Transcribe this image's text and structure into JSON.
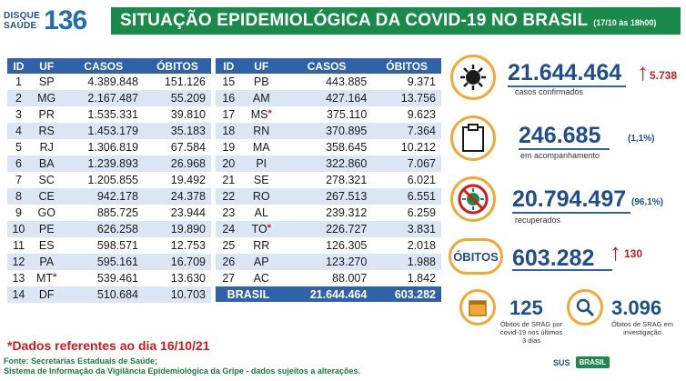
{
  "header": {
    "logo_line1": "DISQUE",
    "logo_line2": "SAÚDE",
    "logo_number": "136",
    "title": "SITUAÇÃO EPIDEMIOLÓGICA DA COVID-19 NO BRASIL",
    "date": "(17/10 às 18h00)"
  },
  "table": {
    "columns": [
      "ID",
      "UF",
      "CASOS",
      "ÓBITOS"
    ],
    "left_rows": [
      {
        "id": "1",
        "uf": "SP",
        "casos": "4.389.848",
        "obitos": "151.126",
        "star": ""
      },
      {
        "id": "2",
        "uf": "MG",
        "casos": "2.167.487",
        "obitos": "55.209",
        "star": ""
      },
      {
        "id": "3",
        "uf": "PR",
        "casos": "1.535.331",
        "obitos": "39.810",
        "star": ""
      },
      {
        "id": "4",
        "uf": "RS",
        "casos": "1.453.179",
        "obitos": "35.183",
        "star": ""
      },
      {
        "id": "5",
        "uf": "RJ",
        "casos": "1.306.819",
        "obitos": "67.584",
        "star": ""
      },
      {
        "id": "6",
        "uf": "BA",
        "casos": "1.239.893",
        "obitos": "26.968",
        "star": ""
      },
      {
        "id": "7",
        "uf": "SC",
        "casos": "1.205.855",
        "obitos": "19.492",
        "star": ""
      },
      {
        "id": "8",
        "uf": "CE",
        "casos": "942.178",
        "obitos": "24.378",
        "star": ""
      },
      {
        "id": "9",
        "uf": "GO",
        "casos": "885.725",
        "obitos": "23.944",
        "star": ""
      },
      {
        "id": "10",
        "uf": "PE",
        "casos": "626.258",
        "obitos": "19.890",
        "star": ""
      },
      {
        "id": "11",
        "uf": "ES",
        "casos": "598.571",
        "obitos": "12.753",
        "star": ""
      },
      {
        "id": "12",
        "uf": "PA",
        "casos": "595.161",
        "obitos": "16.709",
        "star": ""
      },
      {
        "id": "13",
        "uf": "MT",
        "casos": "539.461",
        "obitos": "13.630",
        "star": "*"
      },
      {
        "id": "14",
        "uf": "DF",
        "casos": "510.684",
        "obitos": "10.703",
        "star": ""
      }
    ],
    "right_rows": [
      {
        "id": "15",
        "uf": "PB",
        "casos": "443.885",
        "obitos": "9.371",
        "star": ""
      },
      {
        "id": "16",
        "uf": "AM",
        "casos": "427.164",
        "obitos": "13.756",
        "star": ""
      },
      {
        "id": "17",
        "uf": "MS",
        "casos": "375.110",
        "obitos": "9.623",
        "star": "*"
      },
      {
        "id": "18",
        "uf": "RN",
        "casos": "370.895",
        "obitos": "7.364",
        "star": ""
      },
      {
        "id": "19",
        "uf": "MA",
        "casos": "358.645",
        "obitos": "10.212",
        "star": ""
      },
      {
        "id": "20",
        "uf": "PI",
        "casos": "322.860",
        "obitos": "7.067",
        "star": ""
      },
      {
        "id": "21",
        "uf": "SE",
        "casos": "278.321",
        "obitos": "6.021",
        "star": ""
      },
      {
        "id": "22",
        "uf": "RO",
        "casos": "267.513",
        "obitos": "6.551",
        "star": ""
      },
      {
        "id": "23",
        "uf": "AL",
        "casos": "239.312",
        "obitos": "6.259",
        "star": ""
      },
      {
        "id": "24",
        "uf": "TO",
        "casos": "226.727",
        "obitos": "3.831",
        "star": "*"
      },
      {
        "id": "25",
        "uf": "RR",
        "casos": "126.305",
        "obitos": "2.018",
        "star": ""
      },
      {
        "id": "26",
        "uf": "AP",
        "casos": "123.270",
        "obitos": "1.988",
        "star": ""
      },
      {
        "id": "27",
        "uf": "AC",
        "casos": "88.007",
        "obitos": "1.842",
        "star": ""
      }
    ],
    "total": {
      "label": "BRASIL",
      "casos": "21.644.464",
      "obitos": "603.282"
    }
  },
  "stats": {
    "confirmed": {
      "value": "21.644.464",
      "delta": "5.738",
      "label": "casos confirmados",
      "icon": "virus-icon"
    },
    "monitoring": {
      "value": "246.685",
      "pct": "(1,1%)",
      "label": "em acompanhamento",
      "icon": "clipboard-icon"
    },
    "recovered": {
      "value": "20.794.497",
      "pct": "(96,1%)",
      "label": "recuperados",
      "icon": "no-virus-icon"
    },
    "deaths": {
      "badge": "ÓBITOS",
      "value": "603.282",
      "delta": "130"
    },
    "srag_deaths": {
      "value": "125",
      "label": "Óbitos de SRAG por covid-19 nos últimos 3 dias",
      "icon": "calendar-icon"
    },
    "srag_investigation": {
      "value": "3.096",
      "label": "Óbitos de SRAG em investigação",
      "icon": "magnifier-icon"
    }
  },
  "footer": {
    "note": "*Dados referentes ao dia 16/10/21",
    "source_line1": "Fonte: Secretarias Estaduais de Saúde;",
    "source_line2": "Sistema de Informação da Vigilância Epidemiológica da Gripe - dados sujeitos a alterações.",
    "logo_sus": "SUS",
    "logo_brasil": "BRASIL"
  },
  "colors": {
    "header_green": "#1a8a4a",
    "table_blue": "#2f62a8",
    "row_alt": "#dbe6f4",
    "accent_orange": "#f2a933",
    "alert_red": "#d11a1a"
  }
}
